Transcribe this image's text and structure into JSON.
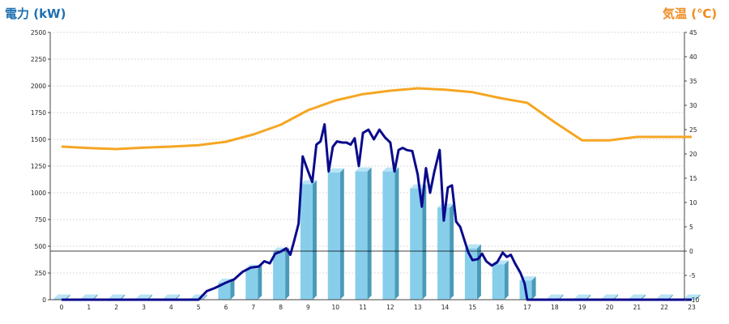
{
  "chart_data": {
    "type": "bar",
    "left_axis_title": "電力 (kW)",
    "right_axis_title": "気温 (℃)",
    "colors": {
      "bar_front": "#87CEEB",
      "bar_side": "#4A9AB8",
      "bar_top": "#B8E4F5",
      "power_line": "#0A0A8C",
      "temp_line": "#F5A623",
      "left_title": "#1E6FB0",
      "right_title": "#F08A1C",
      "grid": "#cccccc",
      "zero_temp_line": "#000000"
    },
    "x": [
      "0",
      "1",
      "2",
      "3",
      "4",
      "5",
      "6",
      "7",
      "8",
      "9",
      "10",
      "11",
      "12",
      "13",
      "14",
      "15",
      "16",
      "17",
      "18",
      "19",
      "20",
      "21",
      "22",
      "23"
    ],
    "ylim_left": [
      0,
      2500
    ],
    "y_ticks_left": [
      "0",
      "250",
      "500",
      "750",
      "1000",
      "1250",
      "1500",
      "1750",
      "2000",
      "2250",
      "2500"
    ],
    "ylim_right": [
      -10,
      45
    ],
    "y_ticks_right": [
      "-10",
      "-5",
      "0",
      "5",
      "10",
      "15",
      "20",
      "25",
      "30",
      "35",
      "40",
      "45"
    ],
    "grid": true,
    "series": [
      {
        "kind": "bar",
        "axis": "left",
        "values": [
          0,
          0,
          0,
          0,
          0,
          0,
          160,
          290,
          450,
          1080,
          1190,
          1200,
          1200,
          1040,
          860,
          480,
          330,
          180,
          0,
          0,
          0,
          0,
          0,
          0
        ]
      },
      {
        "kind": "line",
        "axis": "left",
        "color_key": "power_line",
        "points": [
          [
            0,
            0
          ],
          [
            5,
            0
          ],
          [
            5.3,
            80
          ],
          [
            5.6,
            110
          ],
          [
            6,
            160
          ],
          [
            6.3,
            190
          ],
          [
            6.6,
            260
          ],
          [
            6.9,
            300
          ],
          [
            7.2,
            310
          ],
          [
            7.4,
            360
          ],
          [
            7.6,
            340
          ],
          [
            7.8,
            430
          ],
          [
            8,
            450
          ],
          [
            8.2,
            480
          ],
          [
            8.35,
            420
          ],
          [
            8.5,
            560
          ],
          [
            8.65,
            710
          ],
          [
            8.8,
            1340
          ],
          [
            9.0,
            1200
          ],
          [
            9.15,
            1100
          ],
          [
            9.3,
            1450
          ],
          [
            9.45,
            1480
          ],
          [
            9.6,
            1640
          ],
          [
            9.75,
            1200
          ],
          [
            9.9,
            1430
          ],
          [
            10.05,
            1480
          ],
          [
            10.25,
            1470
          ],
          [
            10.4,
            1470
          ],
          [
            10.55,
            1450
          ],
          [
            10.7,
            1510
          ],
          [
            10.85,
            1250
          ],
          [
            11.0,
            1560
          ],
          [
            11.2,
            1590
          ],
          [
            11.4,
            1500
          ],
          [
            11.6,
            1590
          ],
          [
            11.8,
            1520
          ],
          [
            12.0,
            1470
          ],
          [
            12.15,
            1200
          ],
          [
            12.3,
            1400
          ],
          [
            12.45,
            1420
          ],
          [
            12.6,
            1400
          ],
          [
            12.8,
            1390
          ],
          [
            13.0,
            1170
          ],
          [
            13.15,
            870
          ],
          [
            13.3,
            1230
          ],
          [
            13.45,
            1000
          ],
          [
            13.6,
            1190
          ],
          [
            13.8,
            1400
          ],
          [
            13.95,
            740
          ],
          [
            14.1,
            1050
          ],
          [
            14.25,
            1070
          ],
          [
            14.4,
            730
          ],
          [
            14.55,
            680
          ],
          [
            14.7,
            560
          ],
          [
            14.85,
            440
          ],
          [
            15.0,
            370
          ],
          [
            15.2,
            380
          ],
          [
            15.35,
            430
          ],
          [
            15.5,
            360
          ],
          [
            15.7,
            320
          ],
          [
            15.9,
            350
          ],
          [
            16.1,
            440
          ],
          [
            16.25,
            400
          ],
          [
            16.4,
            420
          ],
          [
            16.55,
            340
          ],
          [
            16.75,
            250
          ],
          [
            16.9,
            150
          ],
          [
            17,
            0
          ],
          [
            23,
            0
          ]
        ]
      },
      {
        "kind": "line",
        "axis": "right",
        "color_key": "temp_line",
        "points": [
          [
            0,
            21.5
          ],
          [
            1,
            21.2
          ],
          [
            2,
            21.0
          ],
          [
            3,
            21.3
          ],
          [
            4,
            21.5
          ],
          [
            5,
            21.8
          ],
          [
            6,
            22.5
          ],
          [
            7,
            24
          ],
          [
            8,
            26
          ],
          [
            9,
            29
          ],
          [
            10,
            31
          ],
          [
            11,
            32.3
          ],
          [
            12,
            33
          ],
          [
            13,
            33.5
          ],
          [
            14,
            33.2
          ],
          [
            15,
            32.7
          ],
          [
            16,
            31.5
          ],
          [
            17,
            30.5
          ],
          [
            18,
            26.5
          ],
          [
            19,
            22.8
          ],
          [
            20,
            22.8
          ],
          [
            21,
            23.5
          ],
          [
            22,
            23.5
          ],
          [
            23,
            23.5
          ]
        ]
      }
    ]
  }
}
